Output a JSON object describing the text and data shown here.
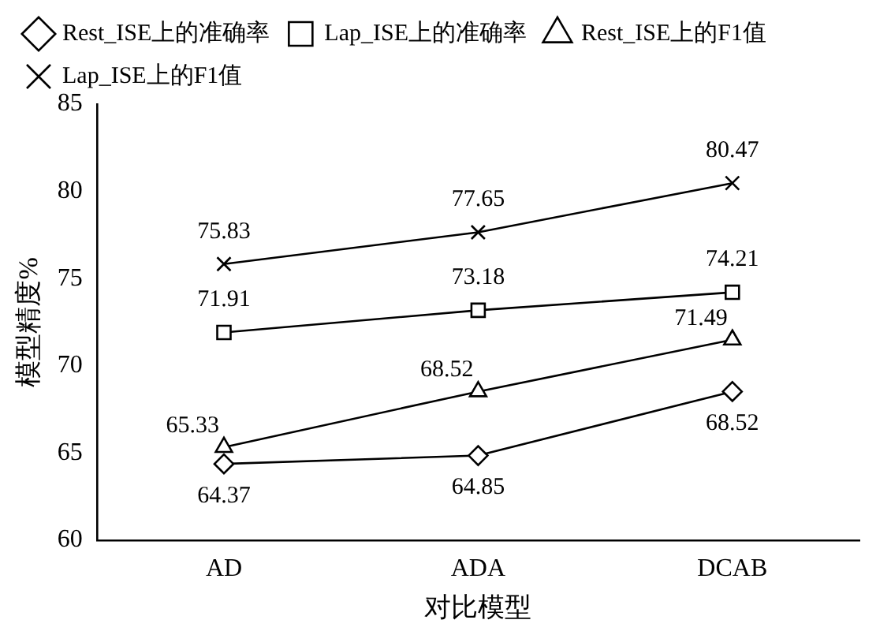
{
  "chart_data": {
    "type": "line",
    "xlabel": "对比模型",
    "ylabel": "模型精度%",
    "categories": [
      "AD",
      "ADA",
      "DCAB"
    ],
    "series": [
      {
        "name": "Rest_ISE上的准确率",
        "color": "#000000",
        "marker": "diamond",
        "values": [
          64.37,
          64.85,
          68.52
        ]
      },
      {
        "name": "Lap_ISE上的准确率",
        "color": "#000000",
        "marker": "square",
        "values": [
          71.91,
          73.18,
          74.21
        ]
      },
      {
        "name": "Rest_ISE上的F1值",
        "color": "#000000",
        "marker": "triangle",
        "values": [
          65.33,
          68.52,
          71.49
        ]
      },
      {
        "name": "Lap_ISE上的F1值",
        "color": "#000000",
        "marker": "cross",
        "values": [
          75.83,
          77.65,
          80.47
        ]
      }
    ],
    "ylim": [
      60,
      85
    ],
    "yticks": [
      60,
      65,
      70,
      75,
      80,
      85
    ],
    "grid": false,
    "legend": "top",
    "data_labels": true
  }
}
